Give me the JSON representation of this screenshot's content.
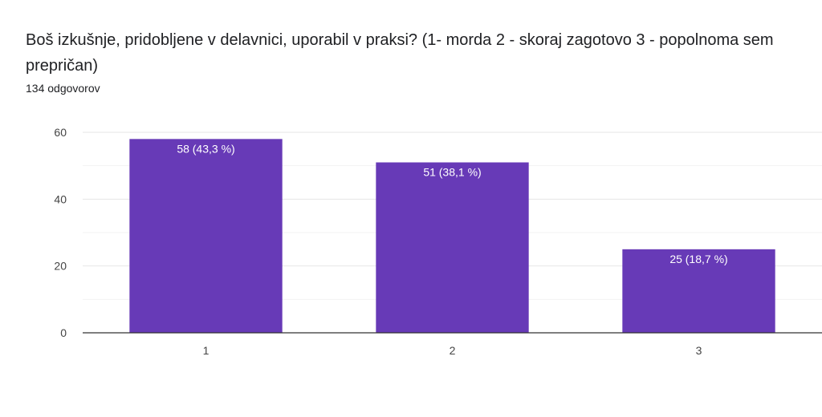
{
  "header": {
    "title": "Boš izkušnje, pridobljene v delavnici, uporabil v praksi?   (1- morda  2 - skoraj zagotovo 3 - popolnoma sem prepričan)",
    "response_count": "134 odgovorov"
  },
  "chart_data": {
    "type": "bar",
    "categories": [
      "1",
      "2",
      "3"
    ],
    "values": [
      58,
      51,
      25
    ],
    "data_labels": [
      "58 (43,3 %)",
      "51 (38,1 %)",
      "25 (18,7 %)"
    ],
    "ylim": [
      0,
      60
    ],
    "yticks": [
      0,
      20,
      40,
      60
    ],
    "grid": true,
    "bar_color": "#673ab7"
  }
}
